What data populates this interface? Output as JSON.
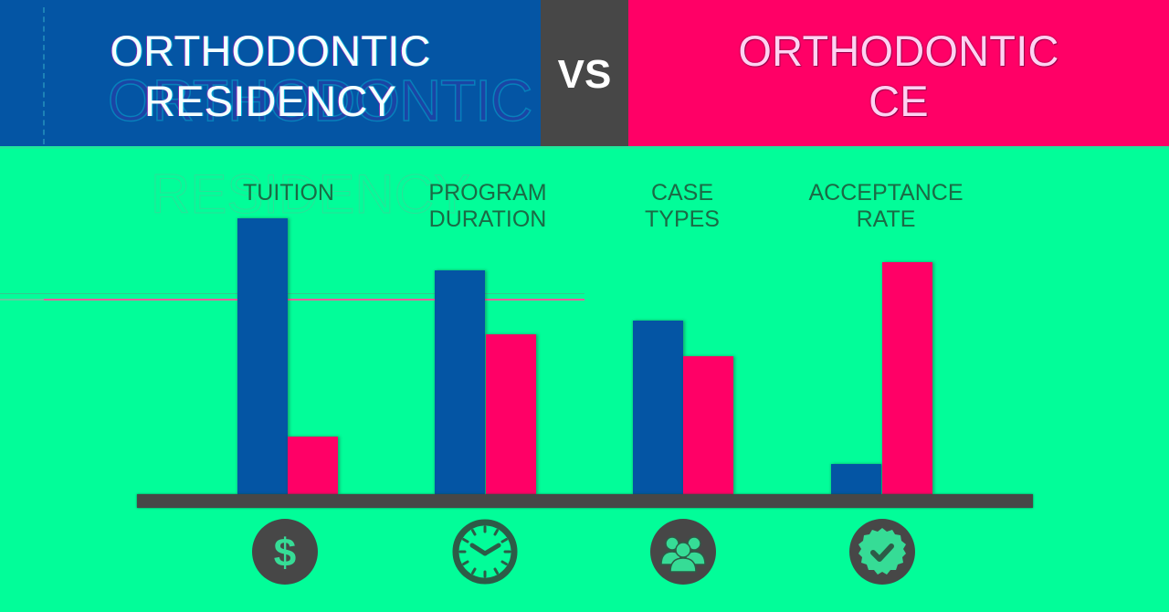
{
  "header": {
    "left_title": {
      "line1": "ORTHODONTIC",
      "line2": "RESIDENCY"
    },
    "vs": "VS",
    "right_title": {
      "line1": "ORTHODONTIC",
      "line2": "CE"
    },
    "ghost_text": "ORTHODONTIC",
    "ghost_text_body": "RESIDENCY"
  },
  "colors": {
    "residency_blue": "#0455a4",
    "ce_pink": "#ff0066",
    "vs_gray": "#474747",
    "background_green": "#02fd99",
    "label_text": "#1b6a45",
    "icon_circle": "#474747",
    "icon_glyph": "#36dc96"
  },
  "chart_data": {
    "type": "bar",
    "title": "ORTHODONTIC RESIDENCY vs ORTHODONTIC CE",
    "categories": [
      "TUITION",
      "PROGRAM DURATION",
      "CASE TYPES",
      "ACCEPTANCE RATE"
    ],
    "labels": [
      {
        "line1": "TUITION",
        "line2": ""
      },
      {
        "line1": "PROGRAM",
        "line2": "DURATION"
      },
      {
        "line1": "CASE",
        "line2": "TYPES"
      },
      {
        "line1": "ACCEPTANCE",
        "line2": "RATE"
      }
    ],
    "series": [
      {
        "name": "Orthodontic Residency",
        "color": "#0455a4",
        "values": [
          100,
          81,
          63,
          11
        ]
      },
      {
        "name": "Orthodontic CE",
        "color": "#ff0066",
        "values": [
          21,
          58,
          50,
          84
        ]
      }
    ],
    "xlabel": "",
    "ylabel": "",
    "ylim": [
      0,
      100
    ],
    "value_scale_note": "relative heights, no numeric axis shown",
    "grid": false,
    "legend": "header panels (left blue = Residency, right pink = CE)",
    "icons": [
      "dollar-icon",
      "clock-icon",
      "group-icon",
      "check-badge-icon"
    ]
  }
}
